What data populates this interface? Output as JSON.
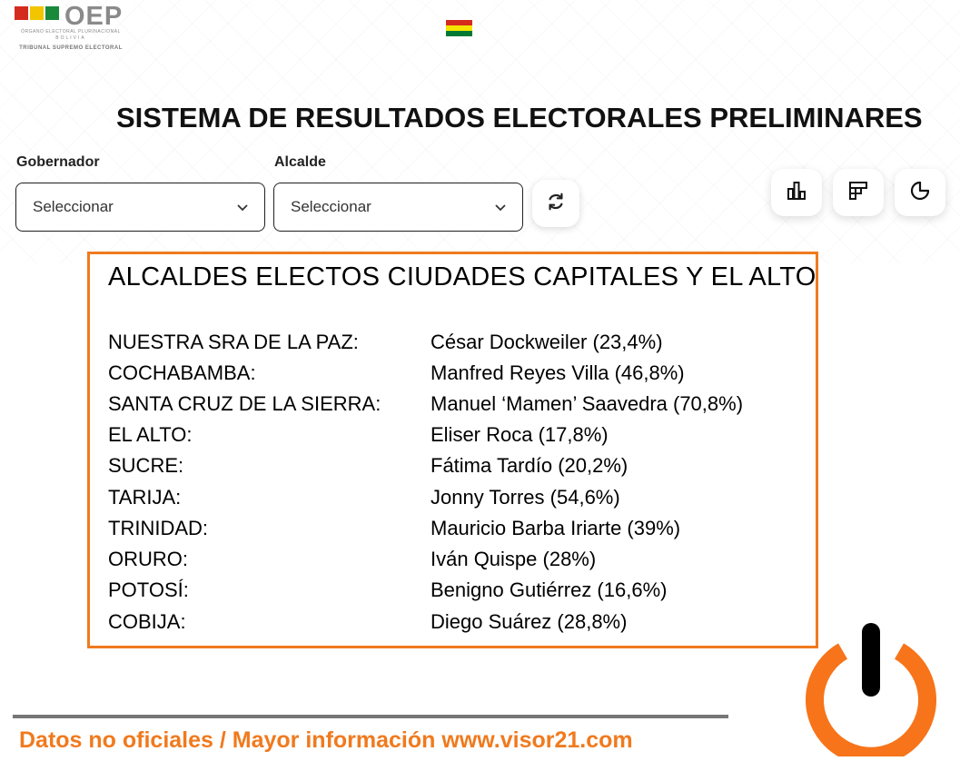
{
  "header": {
    "logo": {
      "brand": "OEP",
      "line1": "ÓRGANO ELECTORAL PLURINACIONAL",
      "line2": "BOLIVIA",
      "line3": "TRIBUNAL SUPREMO ELECTORAL",
      "colors": [
        "#d52b1e",
        "#f2c500",
        "#1a8a3a"
      ]
    },
    "flag_colors": [
      "#d52b1e",
      "#f4e400",
      "#007934"
    ],
    "title": "SISTEMA DE RESULTADOS ELECTORALES PRELIMINARES"
  },
  "filters": {
    "gobernador": {
      "label": "Gobernador",
      "value": "Seleccionar"
    },
    "alcalde": {
      "label": "Alcalde",
      "value": "Seleccionar"
    }
  },
  "toolbar": {
    "icons": [
      "refresh-icon",
      "bar-chart-icon",
      "grid-layout-icon",
      "pie-chart-icon"
    ]
  },
  "results": {
    "title": "ALCALDES ELECTOS CIUDADES CAPITALES Y EL ALTO",
    "border_color": "#f07a1e",
    "rows": [
      {
        "city": "NUESTRA SRA DE LA PAZ:",
        "mayor": "César Dockweiler (23,4%)"
      },
      {
        "city": "COCHABAMBA:",
        "mayor": "Manfred Reyes Villa (46,8%)"
      },
      {
        "city": "SANTA CRUZ DE LA SIERRA:",
        "mayor": "Manuel ‘Mamen’ Saavedra (70,8%)"
      },
      {
        "city": "EL ALTO:",
        "mayor": "Eliser Roca (17,8%)"
      },
      {
        "city": "SUCRE:",
        "mayor": "Fátima Tardío (20,2%)"
      },
      {
        "city": "TARIJA:",
        "mayor": "Jonny Torres (54,6%)"
      },
      {
        "city": "TRINIDAD:",
        "mayor": "Mauricio Barba Iriarte (39%)"
      },
      {
        "city": "ORURO:",
        "mayor": "Iván Quispe (28%)"
      },
      {
        "city": "POTOSÍ:",
        "mayor": "Benigno Gutiérrez (16,6%)"
      },
      {
        "city": "COBIJA:",
        "mayor": "Diego Suárez (28,8%)"
      }
    ]
  },
  "footer": {
    "text": "Datos no oficiales / Mayor información www.visor21.com",
    "accent": "#f07a1e",
    "icon": "power-icon"
  }
}
